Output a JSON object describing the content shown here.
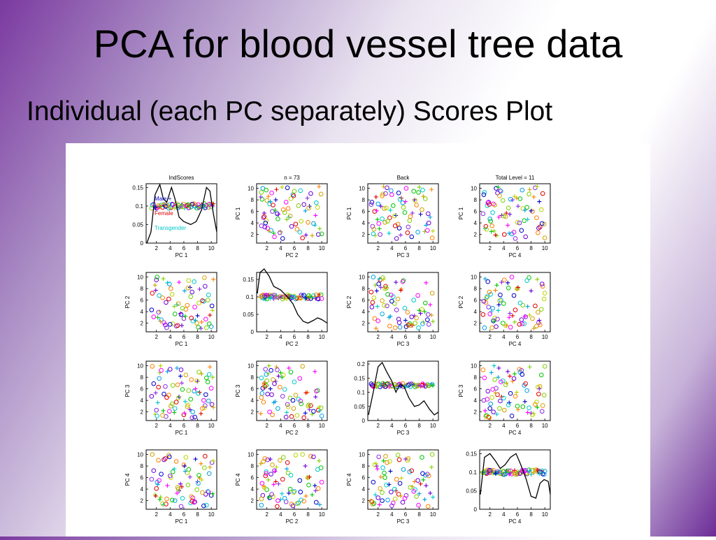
{
  "slide": {
    "title": "PCA for blood vessel tree data",
    "subtitle": "Individual (each PC separately) Scores Plot"
  },
  "legend": {
    "entries": [
      {
        "label": "Male",
        "marker": "+",
        "color": "#0000c8"
      },
      {
        "label": "Female",
        "marker": "",
        "color": "#e00000"
      },
      {
        "label": "Transgender",
        "marker": "",
        "color": "#00c8c8"
      }
    ]
  },
  "chart_data": {
    "type": "scatter",
    "layout": "4x4 scatterplot matrix, diagonal = density estimate with jittered points",
    "column_titles": [
      "IndScores",
      "n = 73",
      "Back",
      "Total Level = 11"
    ],
    "axis_labels": [
      "PC 1",
      "PC 2",
      "PC 3",
      "PC 4"
    ],
    "offdiag_xticks": [
      2,
      4,
      6,
      8,
      10
    ],
    "offdiag_yticks": [
      2,
      4,
      6,
      8,
      10
    ],
    "offdiag_xlim": [
      0.5,
      10.8
    ],
    "offdiag_ylim": [
      0.5,
      10.8
    ],
    "diag_xlim": [
      0.5,
      10.8
    ],
    "diag_ylims": [
      [
        0,
        0.16
      ],
      [
        0,
        0.17
      ],
      [
        0,
        0.21
      ],
      [
        0,
        0.16
      ]
    ],
    "diag_yticks": [
      [
        "0.05",
        "0.1",
        "0.15"
      ],
      [
        "0.05",
        "0.1",
        "0.15"
      ],
      [
        "0.05",
        "0.1",
        "0.15",
        "0.2"
      ],
      [
        "0.05",
        "0.1",
        "0.15"
      ]
    ],
    "diag_ytick_values": [
      [
        0.05,
        0.1,
        0.15
      ],
      [
        0.05,
        0.1,
        0.15
      ],
      [
        0.05,
        0.1,
        0.15,
        0.2
      ],
      [
        0.05,
        0.1,
        0.15
      ]
    ],
    "diag_zero_label": "0",
    "diag_point_level": [
      0.1,
      0.1,
      0.125,
      0.1
    ],
    "densities": [
      [
        [
          0.6,
          0.0
        ],
        [
          1.2,
          0.03
        ],
        [
          1.8,
          0.13
        ],
        [
          2.5,
          0.158
        ],
        [
          3.0,
          0.12
        ],
        [
          3.5,
          0.11
        ],
        [
          4.2,
          0.15
        ],
        [
          4.7,
          0.12
        ],
        [
          5.3,
          0.07
        ],
        [
          6.0,
          0.058
        ],
        [
          7.0,
          0.05
        ],
        [
          7.8,
          0.058
        ],
        [
          8.6,
          0.09
        ],
        [
          9.3,
          0.15
        ],
        [
          9.8,
          0.14
        ],
        [
          10.3,
          0.08
        ],
        [
          10.8,
          0.03
        ]
      ],
      [
        [
          0.6,
          0.11
        ],
        [
          1.0,
          0.17
        ],
        [
          1.6,
          0.18
        ],
        [
          2.3,
          0.16
        ],
        [
          3.0,
          0.13
        ],
        [
          4.0,
          0.12
        ],
        [
          5.0,
          0.1
        ],
        [
          5.8,
          0.08
        ],
        [
          6.5,
          0.05
        ],
        [
          7.3,
          0.03
        ],
        [
          8.0,
          0.025
        ],
        [
          8.8,
          0.033
        ],
        [
          9.4,
          0.04
        ],
        [
          10.0,
          0.035
        ],
        [
          10.8,
          0.025
        ]
      ],
      [
        [
          0.6,
          0.02
        ],
        [
          1.3,
          0.1
        ],
        [
          2.0,
          0.19
        ],
        [
          2.6,
          0.205
        ],
        [
          3.3,
          0.17
        ],
        [
          4.0,
          0.14
        ],
        [
          4.6,
          0.1
        ],
        [
          5.2,
          0.13
        ],
        [
          5.8,
          0.12
        ],
        [
          6.5,
          0.08
        ],
        [
          7.3,
          0.05
        ],
        [
          8.0,
          0.055
        ],
        [
          8.7,
          0.07
        ],
        [
          9.5,
          0.04
        ],
        [
          10.2,
          0.02
        ],
        [
          10.8,
          0.03
        ]
      ],
      [
        [
          0.6,
          0.04
        ],
        [
          1.2,
          0.14
        ],
        [
          2.0,
          0.15
        ],
        [
          2.8,
          0.13
        ],
        [
          3.5,
          0.11
        ],
        [
          4.2,
          0.12
        ],
        [
          5.0,
          0.14
        ],
        [
          5.8,
          0.15
        ],
        [
          6.5,
          0.12
        ],
        [
          7.3,
          0.08
        ],
        [
          8.0,
          0.035
        ],
        [
          8.7,
          0.03
        ],
        [
          9.3,
          0.07
        ],
        [
          9.9,
          0.08
        ],
        [
          10.5,
          0.075
        ],
        [
          10.8,
          0.04
        ]
      ]
    ],
    "palette": [
      "#0000c8",
      "#6a00d8",
      "#8a2be2",
      "#e00000",
      "#ff7f00",
      "#d4a000",
      "#b8d400",
      "#7fd000",
      "#00c400",
      "#00c8c8",
      "#00a0e0",
      "#ff00ff"
    ],
    "markers": [
      "o",
      "+",
      "o",
      "o",
      "+",
      "o",
      "o",
      "+",
      "o",
      "o",
      "o",
      "+",
      "o"
    ],
    "pc_scores": {
      "PC1": [
        2.0,
        2.5,
        3.1,
        4.1,
        5.0,
        6.0,
        7.0,
        8.0,
        9.0,
        10.0,
        1.4,
        2.2,
        3.4,
        4.4,
        5.3,
        6.3,
        7.3,
        8.3,
        9.3,
        10.1,
        1.8,
        2.7,
        3.8,
        4.7,
        5.7,
        6.7,
        7.6,
        8.6,
        9.6,
        2.3,
        3.0,
        4.0,
        5.2,
        6.1,
        7.1,
        8.1,
        9.1,
        10.2,
        1.6,
        2.9,
        3.6,
        4.9,
        5.8,
        6.9,
        7.9,
        8.9,
        9.8,
        2.1,
        3.3,
        4.3,
        5.5,
        6.5,
        7.5,
        8.5,
        9.5,
        1.3,
        2.6,
        3.9,
        5.1,
        6.2,
        7.2,
        8.2,
        9.2,
        10.3,
        2.4,
        3.5,
        4.6,
        5.6,
        6.6,
        7.7,
        8.7,
        9.7,
        1.9
      ],
      "PC2": [
        9.5,
        4.0,
        2.1,
        8.0,
        5.2,
        2.8,
        6.6,
        3.3,
        9.9,
        1.4,
        7.2,
        3.0,
        5.6,
        1.9,
        9.1,
        4.4,
        2.4,
        7.9,
        1.2,
        5.0,
        8.6,
        2.6,
        6.2,
        3.6,
        1.6,
        9.4,
        4.8,
        2.2,
        6.9,
        3.9,
        9.7,
        1.8,
        5.4,
        7.6,
        2.9,
        1.3,
        8.4,
        4.2,
        3.1,
        6.4,
        9.0,
        1.5,
        4.6,
        8.2,
        2.0,
        5.8,
        3.4,
        10.0,
        1.7,
        7.0,
        3.7,
        5.1,
        9.2,
        1.1,
        6.0,
        4.3,
        2.3,
        8.8,
        1.6,
        3.2,
        7.4,
        5.5,
        2.7,
        9.6,
        6.8,
        1.2,
        4.9,
        3.5,
        8.1,
        2.5,
        5.9,
        1.9,
        7.7
      ],
      "PC3": [
        2.3,
        8.8,
        5.1,
        3.0,
        9.6,
        1.5,
        4.2,
        7.3,
        2.7,
        6.1,
        9.9,
        3.6,
        1.2,
        6.6,
        4.6,
        8.4,
        2.0,
        5.4,
        7.9,
        3.3,
        1.6,
        9.2,
        4.9,
        2.6,
        7.0,
        5.7,
        1.1,
        8.6,
        3.9,
        6.3,
        2.2,
        9.4,
        4.4,
        1.8,
        7.6,
        5.2,
        3.1,
        8.0,
        6.9,
        1.4,
        9.0,
        3.7,
        5.9,
        2.4,
        7.4,
        4.0,
        9.8,
        1.3,
        6.4,
        3.4,
        8.2,
        2.9,
        5.6,
        1.7,
        7.2,
        4.7,
        10.0,
        2.1,
        6.7,
        3.8,
        1.0,
        8.9,
        5.0,
        2.8,
        7.8,
        4.5,
        1.9,
        9.3,
        3.2,
        6.0,
        2.6,
        8.5,
        5.3
      ],
      "PC4": [
        4.1,
        2.2,
        9.1,
        6.0,
        3.3,
        8.2,
        1.6,
        5.3,
        7.7,
        2.9,
        10.0,
        4.8,
        1.4,
        7.0,
        3.7,
        9.5,
        2.5,
        5.9,
        1.2,
        8.6,
        3.0,
        6.6,
        9.9,
        2.0,
        4.4,
        7.4,
        1.8,
        5.6,
        3.5,
        9.0,
        1.3,
        6.3,
        4.0,
        8.0,
        2.7,
        5.0,
        9.7,
        3.2,
        7.2,
        1.5,
        4.6,
        8.8,
        2.4,
        6.1,
        3.9,
        1.1,
        7.8,
        5.2,
        9.3,
        2.1,
        4.9,
        6.8,
        1.7,
        8.4,
        3.6,
        5.7,
        2.6,
        9.6,
        4.3,
        7.1,
        1.9,
        6.4,
        3.1,
        8.9,
        5.5,
        2.3,
        7.5,
        1.0,
        4.7,
        9.2,
        3.4,
        6.7,
        2.8
      ]
    }
  }
}
